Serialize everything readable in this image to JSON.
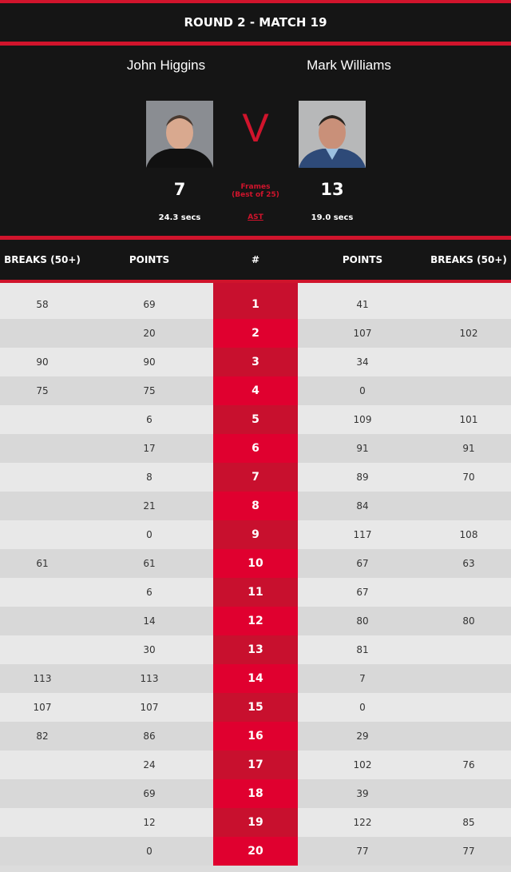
{
  "title": "ROUND 2 - MATCH 19",
  "player1": {
    "name": "John Higgins",
    "frames": "7",
    "shot_time": "24.3 secs"
  },
  "player2": {
    "name": "Mark Williams",
    "frames": "13",
    "shot_time": "19.0 secs"
  },
  "vs": "V",
  "frames_label": "Frames",
  "best_of": "(Best of 25)",
  "ast_label": "AST",
  "columns": [
    "BREAKS (50+)",
    "POINTS",
    "#",
    "POINTS",
    "BREAKS (50+)"
  ],
  "colors": {
    "accent": "#d0142c",
    "dark": "#151515"
  },
  "rows": [
    {
      "frame": "1",
      "p1_breaks": "58",
      "p1_points": "69",
      "p2_points": "41",
      "p2_breaks": ""
    },
    {
      "frame": "2",
      "p1_breaks": "",
      "p1_points": "20",
      "p2_points": "107",
      "p2_breaks": "102"
    },
    {
      "frame": "3",
      "p1_breaks": "90",
      "p1_points": "90",
      "p2_points": "34",
      "p2_breaks": ""
    },
    {
      "frame": "4",
      "p1_breaks": "75",
      "p1_points": "75",
      "p2_points": "0",
      "p2_breaks": ""
    },
    {
      "frame": "5",
      "p1_breaks": "",
      "p1_points": "6",
      "p2_points": "109",
      "p2_breaks": "101"
    },
    {
      "frame": "6",
      "p1_breaks": "",
      "p1_points": "17",
      "p2_points": "91",
      "p2_breaks": "91"
    },
    {
      "frame": "7",
      "p1_breaks": "",
      "p1_points": "8",
      "p2_points": "89",
      "p2_breaks": "70"
    },
    {
      "frame": "8",
      "p1_breaks": "",
      "p1_points": "21",
      "p2_points": "84",
      "p2_breaks": ""
    },
    {
      "frame": "9",
      "p1_breaks": "",
      "p1_points": "0",
      "p2_points": "117",
      "p2_breaks": "108"
    },
    {
      "frame": "10",
      "p1_breaks": "61",
      "p1_points": "61",
      "p2_points": "67",
      "p2_breaks": "63"
    },
    {
      "frame": "11",
      "p1_breaks": "",
      "p1_points": "6",
      "p2_points": "67",
      "p2_breaks": ""
    },
    {
      "frame": "12",
      "p1_breaks": "",
      "p1_points": "14",
      "p2_points": "80",
      "p2_breaks": "80"
    },
    {
      "frame": "13",
      "p1_breaks": "",
      "p1_points": "30",
      "p2_points": "81",
      "p2_breaks": ""
    },
    {
      "frame": "14",
      "p1_breaks": "113",
      "p1_points": "113",
      "p2_points": "7",
      "p2_breaks": ""
    },
    {
      "frame": "15",
      "p1_breaks": "107",
      "p1_points": "107",
      "p2_points": "0",
      "p2_breaks": ""
    },
    {
      "frame": "16",
      "p1_breaks": "82",
      "p1_points": "86",
      "p2_points": "29",
      "p2_breaks": ""
    },
    {
      "frame": "17",
      "p1_breaks": "",
      "p1_points": "24",
      "p2_points": "102",
      "p2_breaks": "76"
    },
    {
      "frame": "18",
      "p1_breaks": "",
      "p1_points": "69",
      "p2_points": "39",
      "p2_breaks": ""
    },
    {
      "frame": "19",
      "p1_breaks": "",
      "p1_points": "12",
      "p2_points": "122",
      "p2_breaks": "85"
    },
    {
      "frame": "20",
      "p1_breaks": "",
      "p1_points": "0",
      "p2_points": "77",
      "p2_breaks": "77"
    }
  ]
}
